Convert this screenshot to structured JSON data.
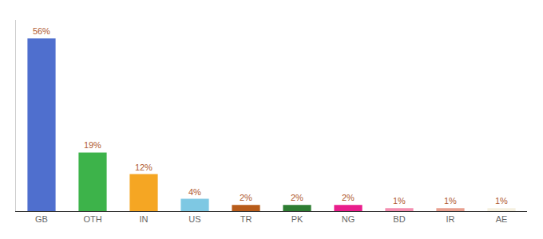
{
  "chart_data": {
    "type": "bar",
    "categories": [
      "GB",
      "OTH",
      "IN",
      "US",
      "TR",
      "PK",
      "NG",
      "BD",
      "IR",
      "AE"
    ],
    "values": [
      56,
      19,
      12,
      4,
      2,
      2,
      2,
      1,
      1,
      1
    ],
    "value_labels": [
      "56%",
      "19%",
      "12%",
      "4%",
      "2%",
      "2%",
      "2%",
      "1%",
      "1%",
      "1%"
    ],
    "colors": [
      "#4f6fce",
      "#3db34a",
      "#f5a623",
      "#7ec8e3",
      "#b85c1a",
      "#2e7d32",
      "#e91e8c",
      "#f48fb1",
      "#e8a090",
      "#f5f0e0"
    ],
    "ylim": [
      0,
      62
    ],
    "data_labels": true,
    "tick_labels": "x",
    "grid": false
  }
}
